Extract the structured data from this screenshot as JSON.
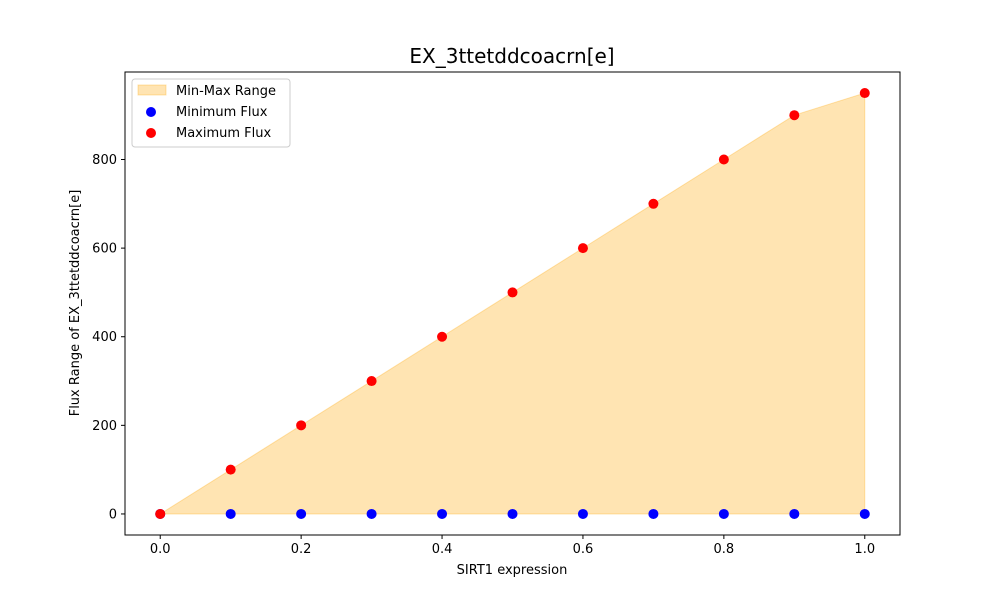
{
  "chart_data": {
    "type": "scatter",
    "title": "EX_3ttetddcoacrn[e]",
    "xlabel": "SIRT1 expression",
    "ylabel": "Flux Range of EX_3ttetddcoacrn[e]",
    "xlim": [
      -0.05,
      1.05
    ],
    "ylim": [
      -47.5,
      997.5
    ],
    "xticks": [
      0.0,
      0.2,
      0.4,
      0.6,
      0.8,
      1.0
    ],
    "xtick_labels": [
      "0.0",
      "0.2",
      "0.4",
      "0.6",
      "0.8",
      "1.0"
    ],
    "yticks": [
      0,
      200,
      400,
      600,
      800
    ],
    "ytick_labels": [
      "0",
      "200",
      "400",
      "600",
      "800"
    ],
    "grid": false,
    "legend_position": "top-left",
    "x": [
      0.0,
      0.1,
      0.2,
      0.3,
      0.4,
      0.5,
      0.6,
      0.7,
      0.8,
      0.9,
      1.0
    ],
    "series": [
      {
        "name": "Min-Max Range",
        "kind": "fill_between",
        "color": "#FFA500",
        "alpha": 0.3,
        "lower": [
          0,
          0,
          0,
          0,
          0,
          0,
          0,
          0,
          0,
          0,
          0
        ],
        "upper": [
          0,
          100,
          200,
          300,
          400,
          500,
          600,
          700,
          800,
          900,
          950
        ]
      },
      {
        "name": "Minimum Flux",
        "kind": "scatter",
        "color": "#0000FF",
        "values": [
          0,
          0,
          0,
          0,
          0,
          0,
          0,
          0,
          0,
          0,
          0
        ]
      },
      {
        "name": "Maximum Flux",
        "kind": "scatter",
        "color": "#FF0000",
        "values": [
          0,
          100,
          200,
          300,
          400,
          500,
          600,
          700,
          800,
          900,
          950
        ]
      }
    ]
  }
}
